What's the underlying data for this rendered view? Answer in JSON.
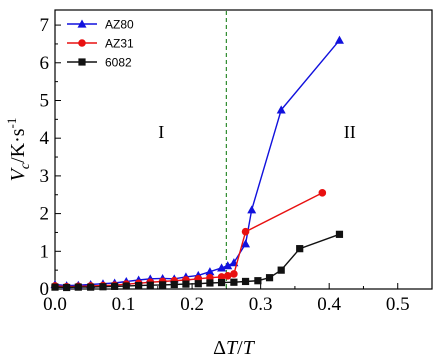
{
  "chart_data": {
    "type": "line",
    "title": "",
    "xlabel": "ΔT/T",
    "ylabel": "V_c/K·s^-1",
    "ylabel_parts": {
      "main": "V",
      "sub": "c",
      "unit": "/K·s",
      "sup": "-1"
    },
    "xlim": [
      0.0,
      0.55
    ],
    "ylim": [
      0,
      7.4
    ],
    "xticks": [
      0.0,
      0.1,
      0.2,
      0.3,
      0.4,
      0.5
    ],
    "xtick_labels": [
      "0.0",
      "0.1",
      "0.2",
      "0.3",
      "0.4",
      "0.5"
    ],
    "yticks": [
      0,
      1,
      2,
      3,
      4,
      5,
      6,
      7
    ],
    "ytick_labels": [
      "0",
      "1",
      "2",
      "3",
      "4",
      "5",
      "6",
      "7"
    ],
    "grid": false,
    "legend": {
      "position": "top-left"
    },
    "reference_line": {
      "x": 0.25,
      "color": "#2e8b2e",
      "style": "dashed"
    },
    "regions": [
      {
        "label": "I",
        "x": 0.155,
        "y": 4.0
      },
      {
        "label": "II",
        "x": 0.43,
        "y": 4.0
      }
    ],
    "series": [
      {
        "name": "AZ80",
        "color": "#1111dd",
        "marker": "triangle",
        "x": [
          0.0,
          0.017,
          0.034,
          0.052,
          0.07,
          0.087,
          0.104,
          0.122,
          0.139,
          0.157,
          0.174,
          0.191,
          0.209,
          0.226,
          0.243,
          0.252,
          0.261,
          0.278,
          0.287,
          0.33,
          0.415
        ],
        "y": [
          0.12,
          0.09,
          0.1,
          0.12,
          0.14,
          0.16,
          0.2,
          0.24,
          0.27,
          0.28,
          0.27,
          0.32,
          0.36,
          0.46,
          0.56,
          0.62,
          0.7,
          1.2,
          2.1,
          4.75,
          6.6
        ]
      },
      {
        "name": "AZ31",
        "color": "#e81010",
        "marker": "circle",
        "x": [
          0.0,
          0.017,
          0.034,
          0.052,
          0.07,
          0.087,
          0.104,
          0.122,
          0.139,
          0.157,
          0.174,
          0.191,
          0.209,
          0.226,
          0.243,
          0.252,
          0.261,
          0.278,
          0.39
        ],
        "y": [
          0.08,
          0.06,
          0.07,
          0.08,
          0.09,
          0.1,
          0.13,
          0.15,
          0.18,
          0.2,
          0.22,
          0.24,
          0.27,
          0.3,
          0.32,
          0.35,
          0.4,
          1.52,
          2.55
        ]
      },
      {
        "name": "6082",
        "color": "#111111",
        "marker": "square",
        "x": [
          0.0,
          0.017,
          0.034,
          0.052,
          0.07,
          0.087,
          0.104,
          0.122,
          0.139,
          0.157,
          0.174,
          0.191,
          0.209,
          0.226,
          0.243,
          0.261,
          0.278,
          0.296,
          0.313,
          0.33,
          0.357,
          0.415
        ],
        "y": [
          0.05,
          0.04,
          0.05,
          0.05,
          0.06,
          0.07,
          0.08,
          0.09,
          0.1,
          0.11,
          0.12,
          0.13,
          0.14,
          0.16,
          0.17,
          0.18,
          0.2,
          0.22,
          0.3,
          0.5,
          1.07,
          1.45
        ]
      }
    ]
  }
}
